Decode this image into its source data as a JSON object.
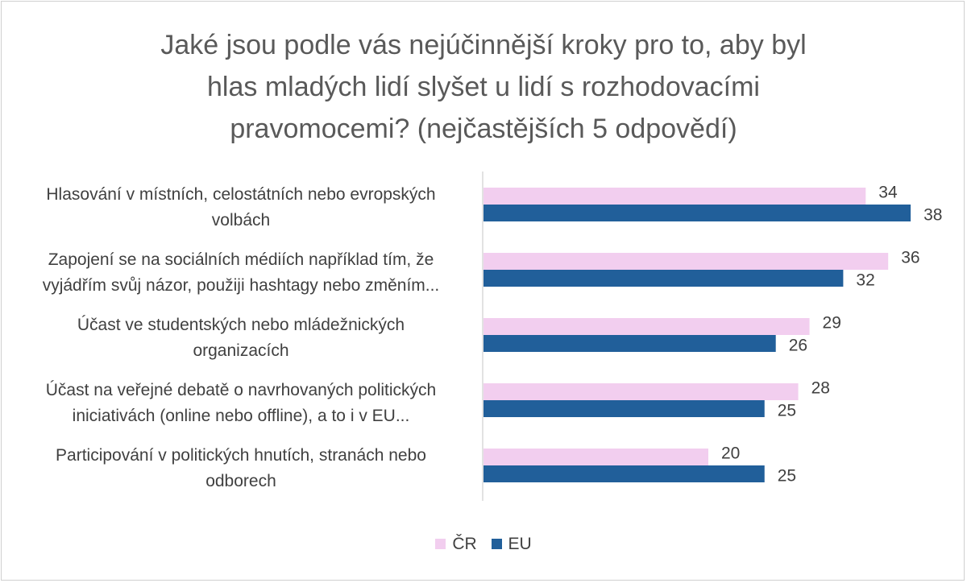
{
  "chart_data": {
    "type": "bar",
    "orientation": "horizontal",
    "title_lines": [
      "Jaké jsou podle vás nejúčinnější kroky pro to, aby byl",
      "hlas mladých lidí slyšet u lidí s rozhodovacími",
      "pravomocemi? (nejčastějších 5 odpovědí)"
    ],
    "categories": [
      [
        "Hlasování v místních, celostátních nebo evropských",
        "volbách"
      ],
      [
        "Zapojení se na sociálních médiích například tím, že",
        "vyjádřím svůj názor, použiji hashtagy nebo změním..."
      ],
      [
        "Účast ve studentských nebo mládežnických",
        "organizacích"
      ],
      [
        "Účast na veřejné debatě o navrhovaných politických",
        "iniciativách (online nebo offline), a to i v EU..."
      ],
      [
        "Participování v politických hnutích, stranách nebo",
        "odborech"
      ]
    ],
    "series": [
      {
        "name": "ČR",
        "color": "#F2CEEF",
        "values": [
          34,
          36,
          29,
          28,
          20
        ]
      },
      {
        "name": "EU",
        "color": "#215F9A",
        "values": [
          38,
          32,
          26,
          25,
          25
        ]
      }
    ],
    "xlim": [
      0,
      38
    ],
    "legend_position": "bottom",
    "grid": false
  }
}
